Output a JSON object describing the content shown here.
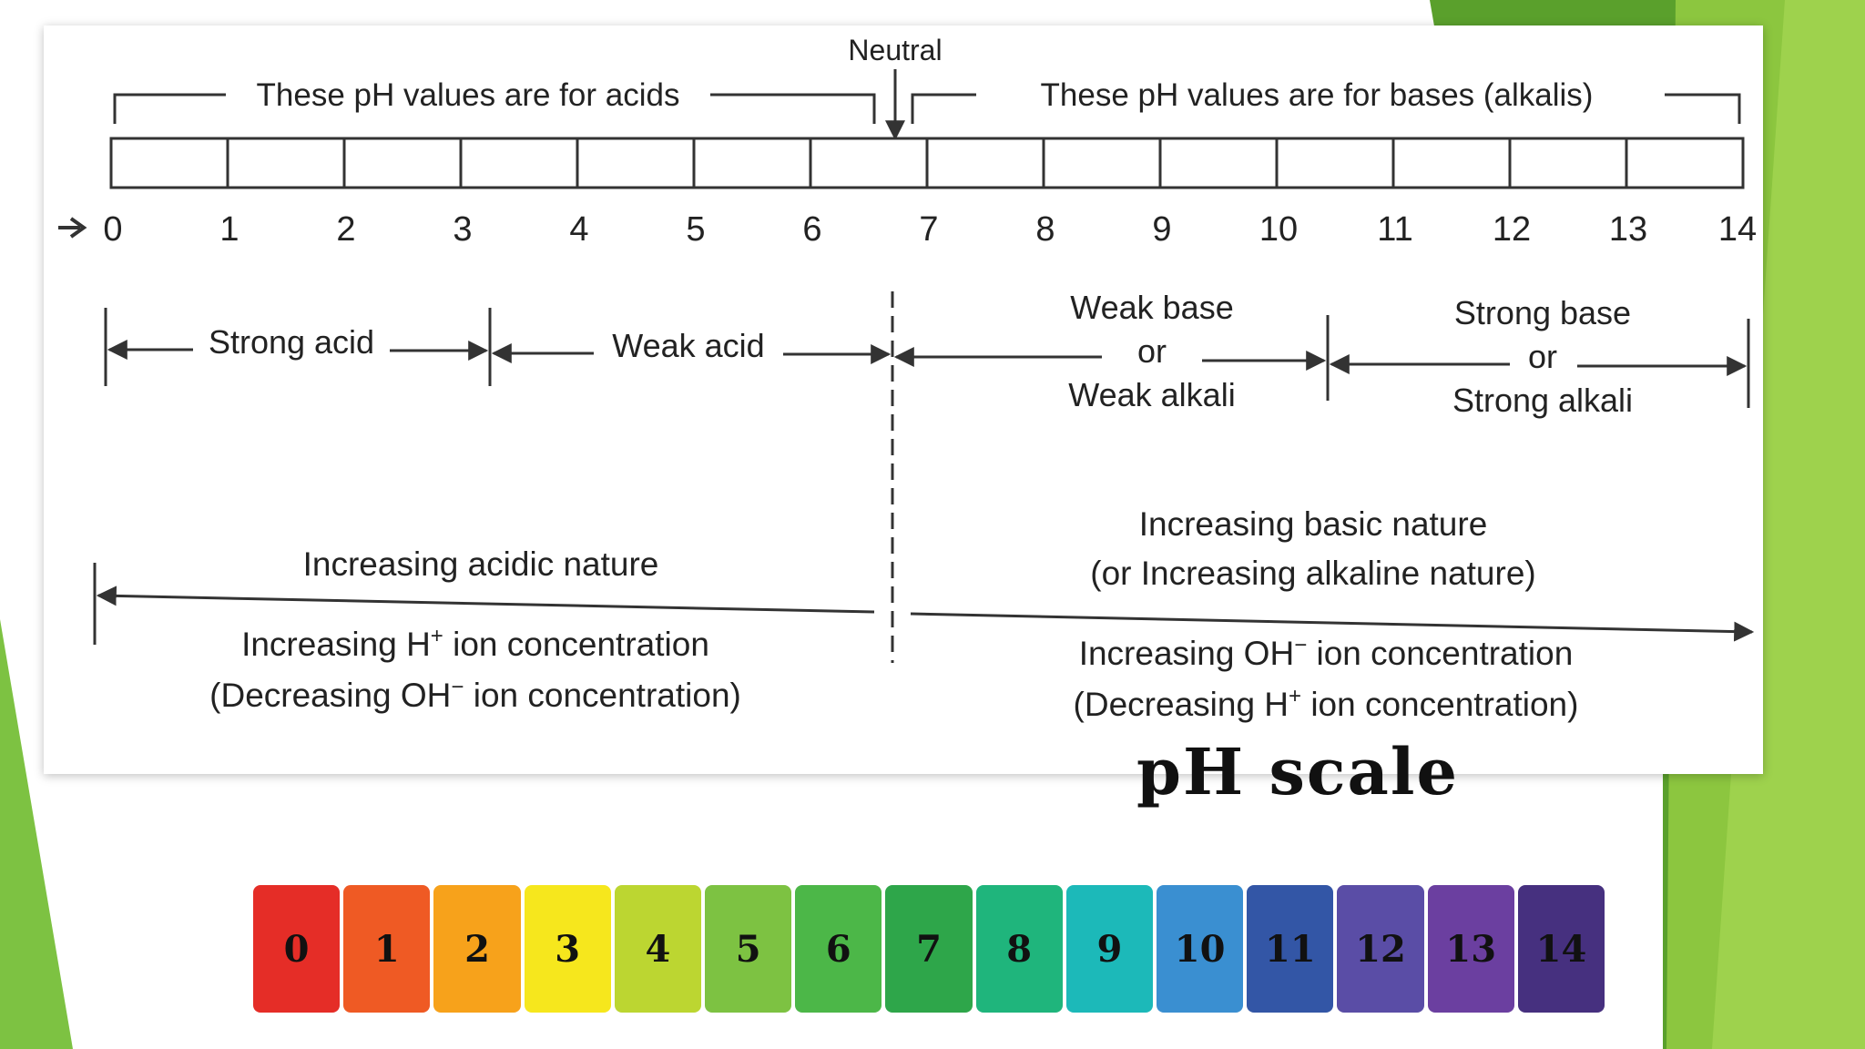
{
  "slide": {
    "accent_colors": [
      "#7dc242",
      "#5aa02c",
      "#9ed24d"
    ]
  },
  "diagram": {
    "neutral_label": "Neutral",
    "acids_bracket_label": "These pH values are for acids",
    "bases_bracket_label": "These pH values are for bases (alkalis)",
    "scale_ticks": [
      "0",
      "1",
      "2",
      "3",
      "4",
      "5",
      "6",
      "7",
      "8",
      "9",
      "10",
      "11",
      "12",
      "13",
      "14"
    ],
    "strong_acid": "Strong acid",
    "weak_acid": "Weak acid",
    "weak_base_line1": "Weak base",
    "weak_base_or": "or",
    "weak_base_line2": "Weak alkali",
    "strong_base_line1": "Strong base",
    "strong_base_or": "or",
    "strong_base_line2": "Strong alkali",
    "acidic_trend": "Increasing acidic nature",
    "acidic_ion_line1_a": "Increasing H",
    "acidic_ion_line1_sup": "+",
    "acidic_ion_line1_b": " ion concentration",
    "acidic_ion_line2_a": "(Decreasing OH",
    "acidic_ion_line2_sup": "−",
    "acidic_ion_line2_b": " ion concentration)",
    "basic_trend_line1": "Increasing basic nature",
    "basic_trend_line2": "(or Increasing alkaline nature)",
    "basic_ion_line1_a": "Increasing OH",
    "basic_ion_line1_sup": "−",
    "basic_ion_line1_b": " ion concentration",
    "basic_ion_line2_a": "(Decreasing H",
    "basic_ion_line2_sup": "+",
    "basic_ion_line2_b": " ion concentration)"
  },
  "title": "pH scale",
  "color_scale": [
    {
      "label": "0",
      "color": "#e52d27"
    },
    {
      "label": "1",
      "color": "#ef5a24"
    },
    {
      "label": "2",
      "color": "#f7a21b"
    },
    {
      "label": "3",
      "color": "#f6e71d"
    },
    {
      "label": "4",
      "color": "#bcd631"
    },
    {
      "label": "5",
      "color": "#7dc242"
    },
    {
      "label": "6",
      "color": "#4cb748"
    },
    {
      "label": "7",
      "color": "#2ea64a"
    },
    {
      "label": "8",
      "color": "#1fb57c"
    },
    {
      "label": "9",
      "color": "#1cb9b9"
    },
    {
      "label": "10",
      "color": "#3a8fd1"
    },
    {
      "label": "11",
      "color": "#3356a6"
    },
    {
      "label": "12",
      "color": "#5a4da6"
    },
    {
      "label": "13",
      "color": "#6b3fa0"
    },
    {
      "label": "14",
      "color": "#46307f"
    }
  ]
}
